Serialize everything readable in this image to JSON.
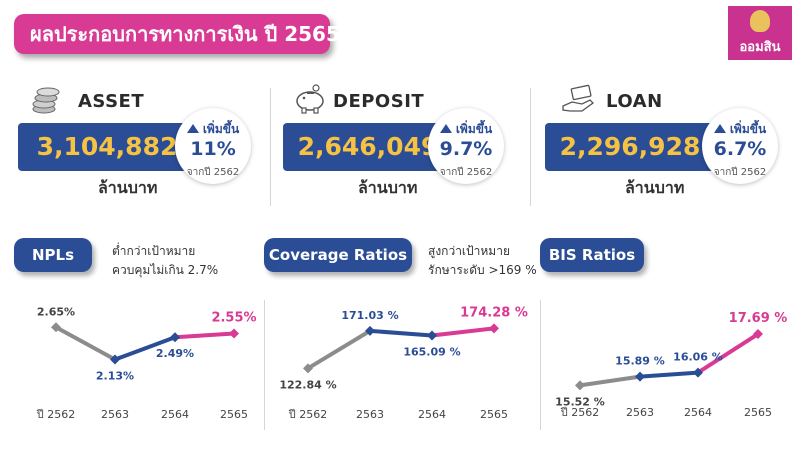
{
  "header": {
    "title": "ผลประกอบการทางการเงิน ปี 2565",
    "logo_text": "ออมสิน"
  },
  "kpis": [
    {
      "label": "ASSET",
      "icon": "coins-icon",
      "value": "3,104,882",
      "unit": "ล้านบาท",
      "change_label": "เพิ่มขึ้น",
      "change_pct": "11%",
      "change_from": "จากปี 2562"
    },
    {
      "label": "DEPOSIT",
      "icon": "piggy-bank-icon",
      "value": "2,646,049",
      "unit": "ล้านบาท",
      "change_label": "เพิ่มขึ้น",
      "change_pct": "9.7%",
      "change_from": "จากปี 2562"
    },
    {
      "label": "LOAN",
      "icon": "hand-money-icon",
      "value": "2,296,928",
      "unit": "ล้านบาท",
      "change_label": "เพิ่มขึ้น",
      "change_pct": "6.7%",
      "change_from": "จากปี 2562"
    }
  ],
  "colors": {
    "pink": "#d93a93",
    "blue": "#2b4d96",
    "gold": "#f6c243",
    "gray": "#8c8c8c"
  },
  "chart_data": [
    {
      "type": "line",
      "title": "NPLs",
      "note_line1": "ต่ำกว่าเป้าหมาย",
      "note_line2": "ควบคุมไม่เกิน 2.7%",
      "categories": [
        "ปี 2562",
        "2563",
        "2564",
        "2565"
      ],
      "values": [
        2.65,
        2.13,
        2.49,
        2.55
      ],
      "labels": [
        "2.65%",
        "2.13%",
        "2.49%",
        "2.55%"
      ],
      "ylim": [
        1.8,
        2.8
      ]
    },
    {
      "type": "line",
      "title": "Coverage Ratios",
      "note_line1": "สูงกว่าเป้าหมาย",
      "note_line2": "รักษาระดับ >169 %",
      "categories": [
        "ปี 2562",
        "2563",
        "2564",
        "2565"
      ],
      "values": [
        122.84,
        171.03,
        165.09,
        174.28
      ],
      "labels": [
        "122.84 %",
        "171.03 %",
        "165.09 %",
        "174.28 %"
      ],
      "ylim": [
        95,
        185
      ]
    },
    {
      "type": "line",
      "title": "BIS Ratios",
      "categories": [
        "ปี 2562",
        "2563",
        "2564",
        "2565"
      ],
      "values": [
        15.52,
        15.89,
        16.06,
        17.69
      ],
      "labels": [
        "15.52 %",
        "15.89 %",
        "16.06 %",
        "17.69 %"
      ],
      "ylim": [
        14.9,
        18.2
      ]
    }
  ]
}
